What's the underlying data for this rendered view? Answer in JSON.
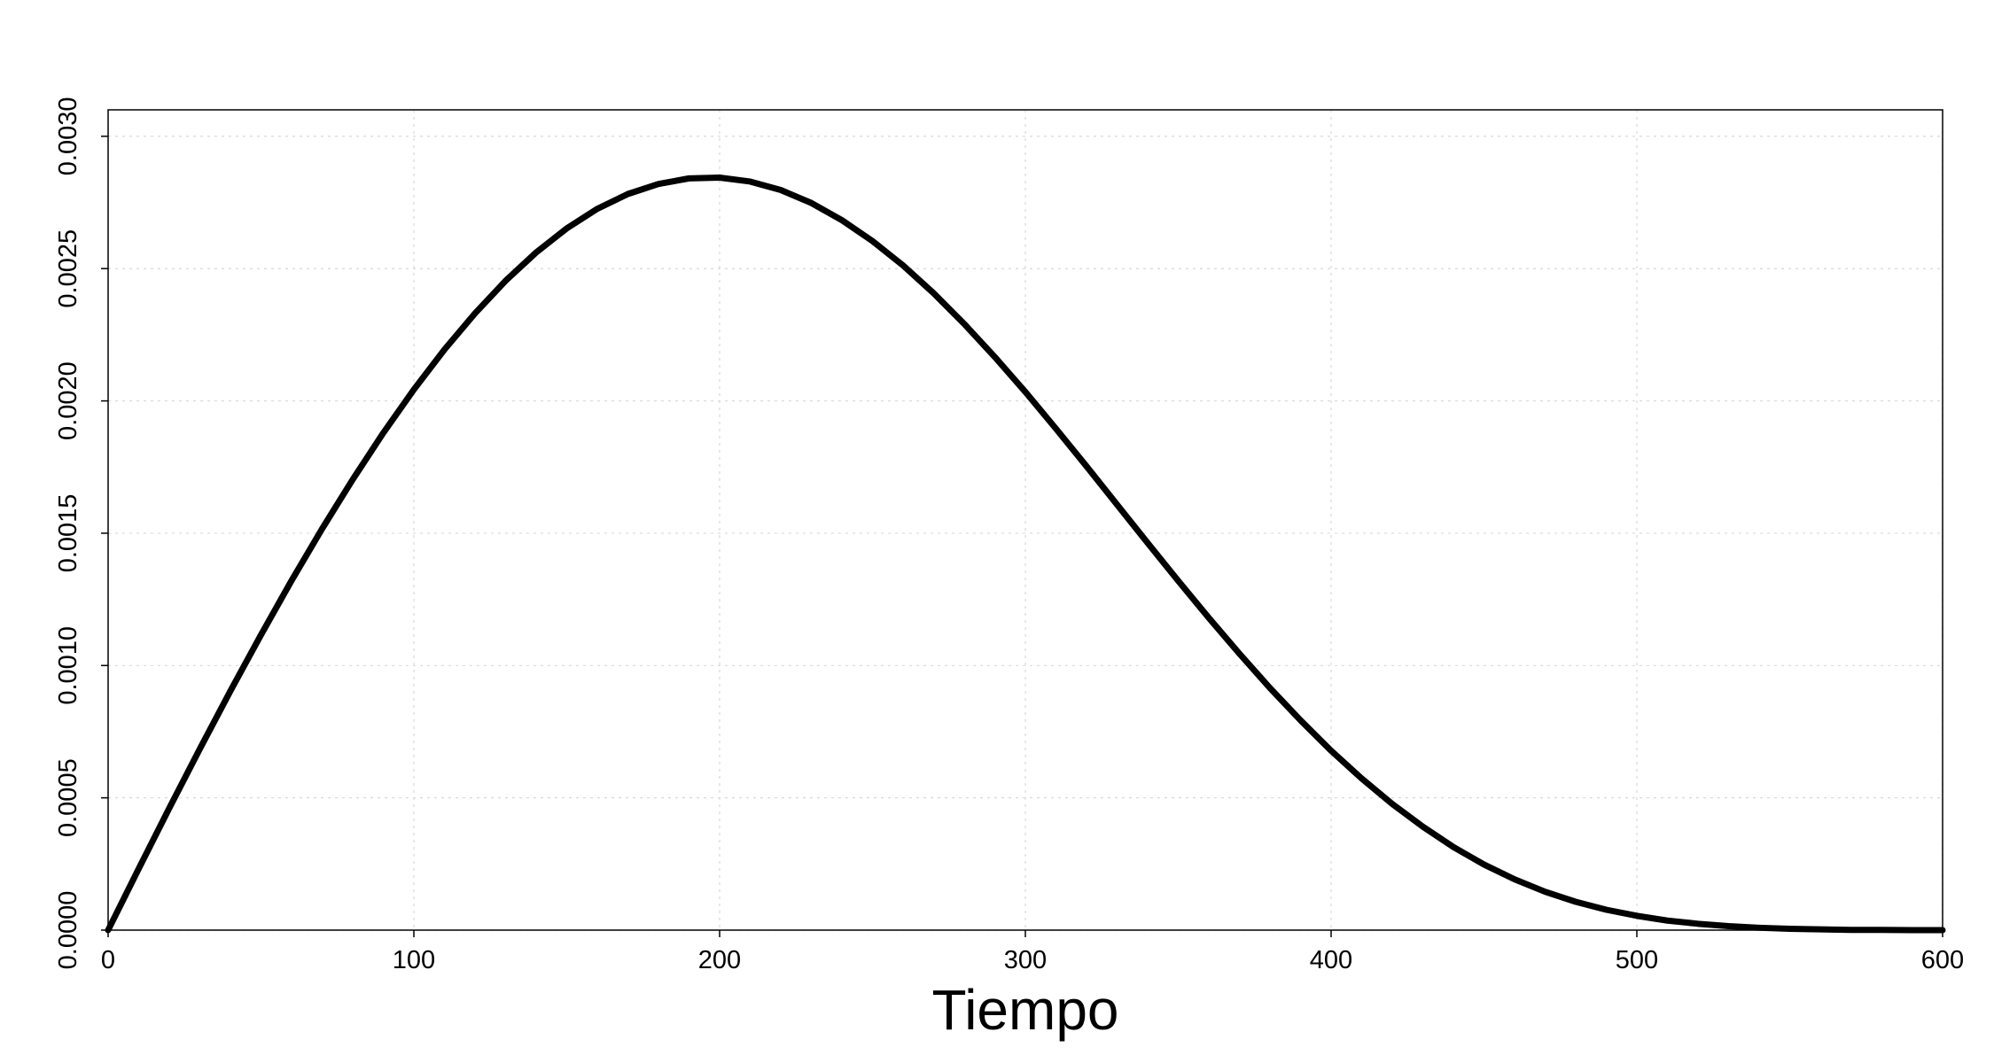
{
  "chart_data": {
    "type": "line",
    "title": "",
    "xlabel": "Tiempo",
    "ylabel": "",
    "xlim": [
      0,
      600
    ],
    "ylim": [
      0,
      0.0031
    ],
    "grid": true,
    "legend": "none",
    "x_ticks": [
      {
        "value": 0,
        "label": "0"
      },
      {
        "value": 100,
        "label": "100"
      },
      {
        "value": 200,
        "label": "200"
      },
      {
        "value": 300,
        "label": "300"
      },
      {
        "value": 400,
        "label": "400"
      },
      {
        "value": 500,
        "label": "500"
      },
      {
        "value": 600,
        "label": "600"
      }
    ],
    "y_ticks": [
      {
        "value": 0.0,
        "label": "0.0000"
      },
      {
        "value": 0.0005,
        "label": "0.0005"
      },
      {
        "value": 0.001,
        "label": "0.0010"
      },
      {
        "value": 0.0015,
        "label": "0.0015"
      },
      {
        "value": 0.002,
        "label": "0.0020"
      },
      {
        "value": 0.0025,
        "label": "0.0025"
      },
      {
        "value": 0.003,
        "label": "0.0030"
      }
    ],
    "series": [
      {
        "color": "#000000",
        "x": [
          0,
          10,
          20,
          30,
          40,
          50,
          60,
          70,
          80,
          90,
          100,
          110,
          120,
          130,
          140,
          150,
          160,
          170,
          180,
          190,
          200,
          210,
          220,
          230,
          240,
          250,
          260,
          270,
          280,
          290,
          300,
          310,
          320,
          330,
          340,
          350,
          360,
          370,
          380,
          390,
          400,
          410,
          420,
          430,
          440,
          450,
          460,
          470,
          480,
          490,
          500,
          510,
          520,
          530,
          540,
          550,
          560,
          570,
          580,
          590,
          600
        ],
        "y": [
          0.0,
          0.000232,
          0.000461,
          0.000685,
          0.000904,
          0.001116,
          0.001321,
          0.001517,
          0.001703,
          0.001879,
          0.002043,
          0.002194,
          0.002331,
          0.002454,
          0.002561,
          0.002652,
          0.002726,
          0.002782,
          0.00282,
          0.002841,
          0.002844,
          0.002829,
          0.002797,
          0.002748,
          0.002683,
          0.002604,
          0.002512,
          0.002407,
          0.002291,
          0.002166,
          0.002034,
          0.001895,
          0.001753,
          0.001608,
          0.001463,
          0.00132,
          0.00118,
          0.001045,
          0.000915,
          0.000793,
          0.000678,
          0.000573,
          0.000477,
          0.000391,
          0.000314,
          0.000248,
          0.000192,
          0.000145,
          0.000107,
          7.7e-05,
          5.4e-05,
          3.6e-05,
          2.4e-05,
          1.5e-05,
          9e-06,
          5e-06,
          3e-06,
          1e-06,
          1e-06,
          0.0,
          0.0
        ]
      }
    ]
  }
}
